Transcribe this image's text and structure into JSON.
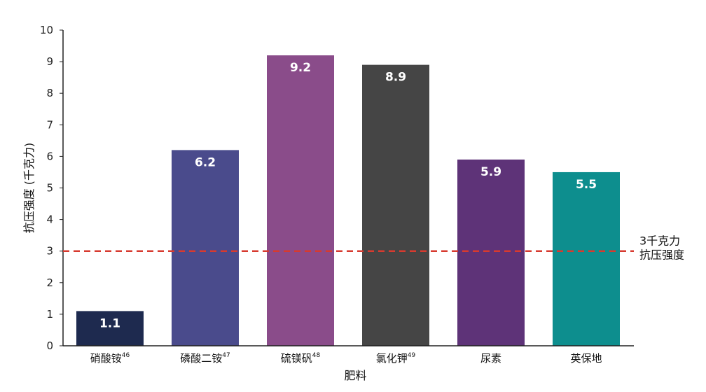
{
  "chart_data": {
    "type": "bar",
    "categories": [
      {
        "label": "硝酸铵",
        "sup": "46"
      },
      {
        "label": "磷酸二铵",
        "sup": "47"
      },
      {
        "label": "硫镁矾",
        "sup": "48"
      },
      {
        "label": "氯化钾",
        "sup": "49"
      },
      {
        "label": "尿素",
        "sup": ""
      },
      {
        "label": "英保地",
        "sup": ""
      }
    ],
    "values": [
      1.1,
      6.2,
      9.2,
      8.9,
      5.9,
      5.5
    ],
    "value_labels": [
      "1.1",
      "6.2",
      "9.2",
      "8.9",
      "5.9",
      "5.5"
    ],
    "colors": [
      "#1e2a4f",
      "#4a4b8c",
      "#8a4c8a",
      "#454545",
      "#5e3378",
      "#0d8e8e"
    ],
    "xlabel": "肥料",
    "ylabel": "抗压强度 (千克力)",
    "ylim": [
      0,
      10
    ],
    "yticks": [
      0,
      1,
      2,
      3,
      4,
      5,
      6,
      7,
      8,
      9,
      10
    ],
    "reference_line": {
      "value": 3,
      "label_lines": [
        "3千克力",
        "抗压强度"
      ],
      "color": "#d73a2f",
      "style": "dashed"
    },
    "grid": false,
    "legend": "none"
  }
}
